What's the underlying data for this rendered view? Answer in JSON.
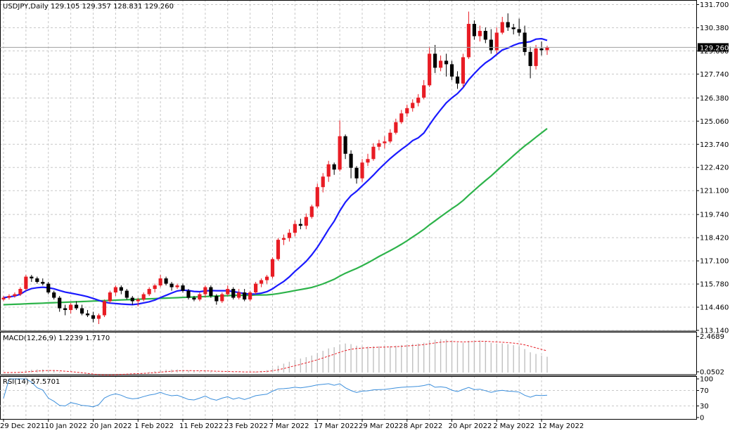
{
  "chart_data": {
    "type": "candlestick",
    "title": "USDJPY,Daily",
    "ohlc_readout": "129.105 129.357 128.831 129.260",
    "last_price_label": "129.260",
    "price_axis_ticks": [
      "131.700",
      "130.380",
      "129.060",
      "127.740",
      "126.380",
      "125.060",
      "123.740",
      "122.420",
      "121.100",
      "119.740",
      "118.420",
      "117.100",
      "115.780",
      "114.460",
      "113.140"
    ],
    "date_labels": [
      "29 Dec 2021",
      "10 Jan 2022",
      "20 Jan 2022",
      "1 Feb 2022",
      "11 Feb 2022",
      "23 Feb 2022",
      "7 Mar 2022",
      "17 Mar 2022",
      "29 Mar 2022",
      "8 Apr 2022",
      "20 Apr 2022",
      "2 May 2022",
      "12 May 2022"
    ],
    "ylim": [
      113.14,
      131.96
    ],
    "colors": {
      "bull": "#e81c24",
      "bear": "#000000",
      "ma_fast": "#1a1aff",
      "ma_slow": "#2db34a",
      "macd_hist": "#c0c0c0",
      "macd_signal": "#e81c24",
      "rsi": "#3c8fdc"
    },
    "candles": [
      [
        114.9,
        115.1,
        114.8,
        115.0
      ],
      [
        115.0,
        115.2,
        114.9,
        115.1
      ],
      [
        115.1,
        115.3,
        115.0,
        115.2
      ],
      [
        115.2,
        115.6,
        115.1,
        115.5
      ],
      [
        115.5,
        116.3,
        115.4,
        116.2
      ],
      [
        116.2,
        116.3,
        115.9,
        116.1
      ],
      [
        116.1,
        116.2,
        115.8,
        115.9
      ],
      [
        115.9,
        116.1,
        115.7,
        115.8
      ],
      [
        115.8,
        115.9,
        115.2,
        115.3
      ],
      [
        115.3,
        115.4,
        114.9,
        115.0
      ],
      [
        115.0,
        115.1,
        114.2,
        114.4
      ],
      [
        114.4,
        114.6,
        114.0,
        114.3
      ],
      [
        114.3,
        114.7,
        114.1,
        114.6
      ],
      [
        114.6,
        114.8,
        114.3,
        114.4
      ],
      [
        114.4,
        114.6,
        114.0,
        114.1
      ],
      [
        114.1,
        114.3,
        113.9,
        114.0
      ],
      [
        114.0,
        114.2,
        113.6,
        113.8
      ],
      [
        113.8,
        114.1,
        113.5,
        114.0
      ],
      [
        114.0,
        114.9,
        113.9,
        114.8
      ],
      [
        114.8,
        115.4,
        114.7,
        115.3
      ],
      [
        115.3,
        115.7,
        115.1,
        115.6
      ],
      [
        115.6,
        115.7,
        115.2,
        115.4
      ],
      [
        115.4,
        115.5,
        114.9,
        115.0
      ],
      [
        115.0,
        115.1,
        114.6,
        114.8
      ],
      [
        114.8,
        115.0,
        114.5,
        114.9
      ],
      [
        114.9,
        115.3,
        114.8,
        115.2
      ],
      [
        115.2,
        115.6,
        115.1,
        115.5
      ],
      [
        115.5,
        115.8,
        115.3,
        115.7
      ],
      [
        115.7,
        116.3,
        115.6,
        116.1
      ],
      [
        116.1,
        116.2,
        115.7,
        115.8
      ],
      [
        115.8,
        115.9,
        115.4,
        115.6
      ],
      [
        115.6,
        115.8,
        115.5,
        115.7
      ],
      [
        115.7,
        115.8,
        115.3,
        115.4
      ],
      [
        115.4,
        115.5,
        114.9,
        115.0
      ],
      [
        115.0,
        115.1,
        114.8,
        114.9
      ],
      [
        114.9,
        115.3,
        114.8,
        115.2
      ],
      [
        115.2,
        115.7,
        115.0,
        115.6
      ],
      [
        115.6,
        115.7,
        115.0,
        115.1
      ],
      [
        115.1,
        115.2,
        114.6,
        114.8
      ],
      [
        114.8,
        115.3,
        114.7,
        115.2
      ],
      [
        115.2,
        115.7,
        115.1,
        115.5
      ],
      [
        115.5,
        115.6,
        114.9,
        115.0
      ],
      [
        115.0,
        115.5,
        114.9,
        115.3
      ],
      [
        115.3,
        115.5,
        114.8,
        114.9
      ],
      [
        114.9,
        115.4,
        114.8,
        115.3
      ],
      [
        115.3,
        115.9,
        115.2,
        115.8
      ],
      [
        115.8,
        116.1,
        115.6,
        116.0
      ],
      [
        116.0,
        116.3,
        115.8,
        116.2
      ],
      [
        116.2,
        117.3,
        116.1,
        117.2
      ],
      [
        117.2,
        118.4,
        117.1,
        118.3
      ],
      [
        118.3,
        118.6,
        118.0,
        118.4
      ],
      [
        118.4,
        118.9,
        118.2,
        118.7
      ],
      [
        118.7,
        119.4,
        118.5,
        119.2
      ],
      [
        119.2,
        119.5,
        118.9,
        119.1
      ],
      [
        119.1,
        119.8,
        118.9,
        119.6
      ],
      [
        119.6,
        120.3,
        119.5,
        120.2
      ],
      [
        120.2,
        121.5,
        120.1,
        121.3
      ],
      [
        121.3,
        122.1,
        121.0,
        121.9
      ],
      [
        121.9,
        122.8,
        121.6,
        122.6
      ],
      [
        122.6,
        122.7,
        122.0,
        122.3
      ],
      [
        122.3,
        125.1,
        122.2,
        124.2
      ],
      [
        124.2,
        124.3,
        122.9,
        123.2
      ],
      [
        123.2,
        123.4,
        121.8,
        122.4
      ],
      [
        122.4,
        122.5,
        121.5,
        121.8
      ],
      [
        121.8,
        122.9,
        121.6,
        122.7
      ],
      [
        122.7,
        123.2,
        122.5,
        122.9
      ],
      [
        122.9,
        123.8,
        122.8,
        123.6
      ],
      [
        123.6,
        124.0,
        123.4,
        123.8
      ],
      [
        123.8,
        124.2,
        123.5,
        123.9
      ],
      [
        123.9,
        124.6,
        123.8,
        124.4
      ],
      [
        124.4,
        125.2,
        124.3,
        125.0
      ],
      [
        125.0,
        125.7,
        124.9,
        125.5
      ],
      [
        125.5,
        126.0,
        125.3,
        125.8
      ],
      [
        125.8,
        126.3,
        125.6,
        126.1
      ],
      [
        126.1,
        126.6,
        125.9,
        126.4
      ],
      [
        126.4,
        127.4,
        126.3,
        127.1
      ],
      [
        127.1,
        129.3,
        127.0,
        128.9
      ],
      [
        128.9,
        129.4,
        127.8,
        128.1
      ],
      [
        128.1,
        128.8,
        127.9,
        128.5
      ],
      [
        128.5,
        128.9,
        127.6,
        128.3
      ],
      [
        128.3,
        128.5,
        127.4,
        127.6
      ],
      [
        127.6,
        127.9,
        126.9,
        127.2
      ],
      [
        127.2,
        128.9,
        127.0,
        128.7
      ],
      [
        128.7,
        131.3,
        128.6,
        130.6
      ],
      [
        130.6,
        130.8,
        129.7,
        129.9
      ],
      [
        129.9,
        130.5,
        129.6,
        130.2
      ],
      [
        130.2,
        130.4,
        129.5,
        129.7
      ],
      [
        129.7,
        130.3,
        128.9,
        129.1
      ],
      [
        129.1,
        130.4,
        128.9,
        130.1
      ],
      [
        130.1,
        131.0,
        130.0,
        130.7
      ],
      [
        130.7,
        131.2,
        130.2,
        130.4
      ],
      [
        130.4,
        130.6,
        130.0,
        130.3
      ],
      [
        130.3,
        130.9,
        129.9,
        130.1
      ],
      [
        130.1,
        130.5,
        128.8,
        129.0
      ],
      [
        129.0,
        129.3,
        127.5,
        128.2
      ],
      [
        128.2,
        129.4,
        128.0,
        129.2
      ],
      [
        129.2,
        129.6,
        128.8,
        129.1
      ],
      [
        129.105,
        129.357,
        128.831,
        129.26
      ]
    ],
    "macd_label": "MACD(12,26,9) 1.2239 1.7170",
    "macd_ticks": [
      "2.4689",
      "0.0502"
    ],
    "macd_ylim": [
      0,
      2.6
    ],
    "rsi_label": "RSI(14) 57.5701",
    "rsi_ticks": [
      "100",
      "70",
      "30",
      "0"
    ],
    "rsi_ylim": [
      0,
      100
    ]
  }
}
